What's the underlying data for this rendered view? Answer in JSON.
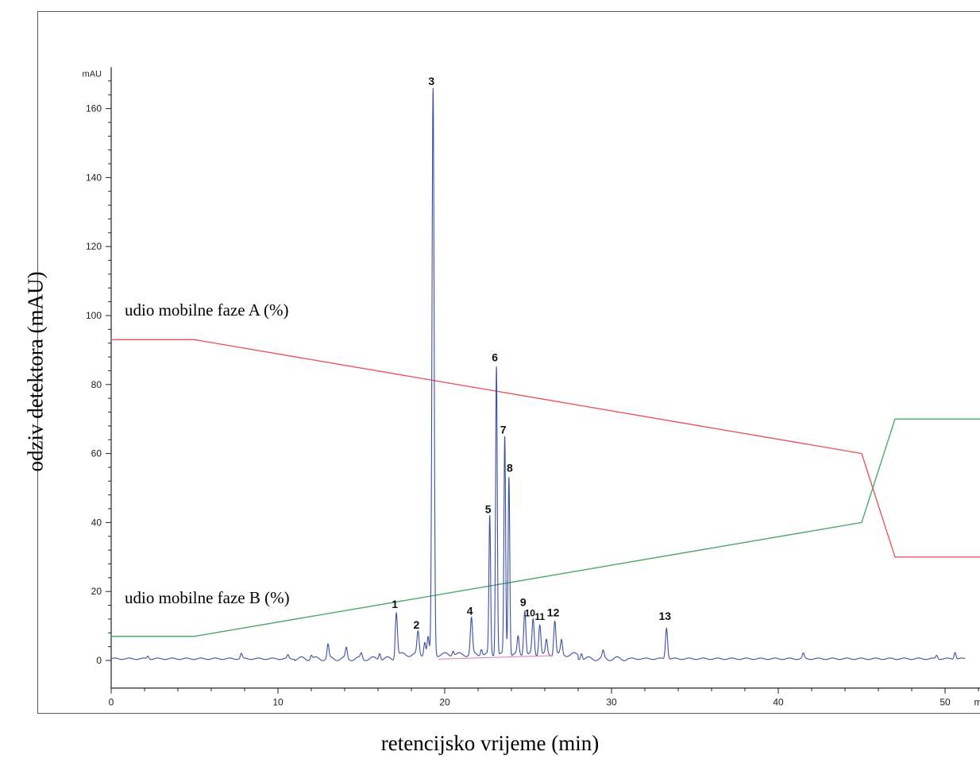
{
  "chart_data": {
    "type": "line",
    "title": "",
    "xlabel": "retencijsko vrijeme (min)",
    "ylabel": "odziv detektora (mAU)",
    "y_unit_label": "mAU",
    "x_unit_label": "min",
    "xlim": [
      0,
      52.5
    ],
    "ylim": [
      -8,
      172
    ],
    "x_ticks": [
      0,
      10,
      20,
      30,
      40,
      50
    ],
    "y_ticks": [
      0,
      20,
      40,
      60,
      80,
      100,
      120,
      140,
      160
    ],
    "grid": false,
    "series": [
      {
        "name": "udio mobilne faze A (%)",
        "color": "#e8595d",
        "x": [
          0,
          5,
          45,
          47,
          52.5
        ],
        "values": [
          93,
          93,
          60,
          30,
          30
        ]
      },
      {
        "name": "udio mobilne faze B (%)",
        "color": "#4aa86a",
        "x": [
          0,
          5,
          45,
          47,
          52.5
        ],
        "values": [
          7,
          7,
          40,
          70,
          70
        ]
      },
      {
        "name": "",
        "color": "#3b4fa3",
        "peaks": [
          {
            "label": "1",
            "x": 17.1,
            "y": 12.5
          },
          {
            "label": "2",
            "x": 18.4,
            "y": 6.5
          },
          {
            "label": "3",
            "x": 19.3,
            "y": 164
          },
          {
            "label": "4",
            "x": 21.6,
            "y": 10.5
          },
          {
            "label": "5",
            "x": 22.7,
            "y": 40
          },
          {
            "label": "6",
            "x": 23.1,
            "y": 84
          },
          {
            "label": "7",
            "x": 23.6,
            "y": 63
          },
          {
            "label": "8",
            "x": 23.85,
            "y": 52
          },
          {
            "label": "9",
            "x": 24.8,
            "y": 13
          },
          {
            "label": "10",
            "x": 25.3,
            "y": 10
          },
          {
            "label": "11",
            "x": 25.7,
            "y": 9
          },
          {
            "label": "12",
            "x": 26.6,
            "y": 10
          },
          {
            "label": "13",
            "x": 33.3,
            "y": 9
          }
        ],
        "minor_peaks": [
          {
            "x": 2.2,
            "y": 0.8
          },
          {
            "x": 7.8,
            "y": 1.5
          },
          {
            "x": 10.6,
            "y": 1.0
          },
          {
            "x": 12.0,
            "y": 1.2
          },
          {
            "x": 13.0,
            "y": 4.0
          },
          {
            "x": 14.1,
            "y": 3.0
          },
          {
            "x": 15.0,
            "y": 1.5
          },
          {
            "x": 16.1,
            "y": 2.0
          },
          {
            "x": 18.8,
            "y": 4.0
          },
          {
            "x": 19.0,
            "y": 5.0
          },
          {
            "x": 20.5,
            "y": 1.5
          },
          {
            "x": 22.2,
            "y": 2.0
          },
          {
            "x": 24.4,
            "y": 5.0
          },
          {
            "x": 26.1,
            "y": 4.0
          },
          {
            "x": 27.0,
            "y": 4.0
          },
          {
            "x": 28.2,
            "y": 2.0
          },
          {
            "x": 29.5,
            "y": 2.0
          },
          {
            "x": 41.5,
            "y": 1.5
          },
          {
            "x": 49.5,
            "y": 1.0
          },
          {
            "x": 50.6,
            "y": 2.0
          }
        ]
      }
    ]
  }
}
